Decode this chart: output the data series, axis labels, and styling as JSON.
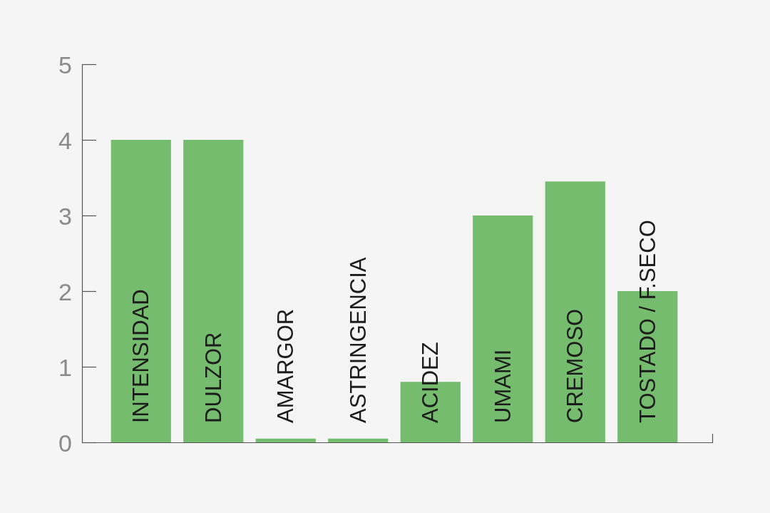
{
  "chart_data": {
    "type": "bar",
    "categories": [
      "INTENSIDAD",
      "DULZOR",
      "AMARGOR",
      "ASTRINGENCIA",
      "ACIDEZ",
      "UMAMI",
      "CREMOSO",
      "TOSTADO / F.SECO"
    ],
    "values": [
      4,
      4,
      0.05,
      0.05,
      0.8,
      3,
      3.45,
      2
    ],
    "color": "#76bc6e",
    "ylim": [
      0,
      5
    ],
    "yticks": [
      0,
      1,
      2,
      3,
      4,
      5
    ]
  }
}
